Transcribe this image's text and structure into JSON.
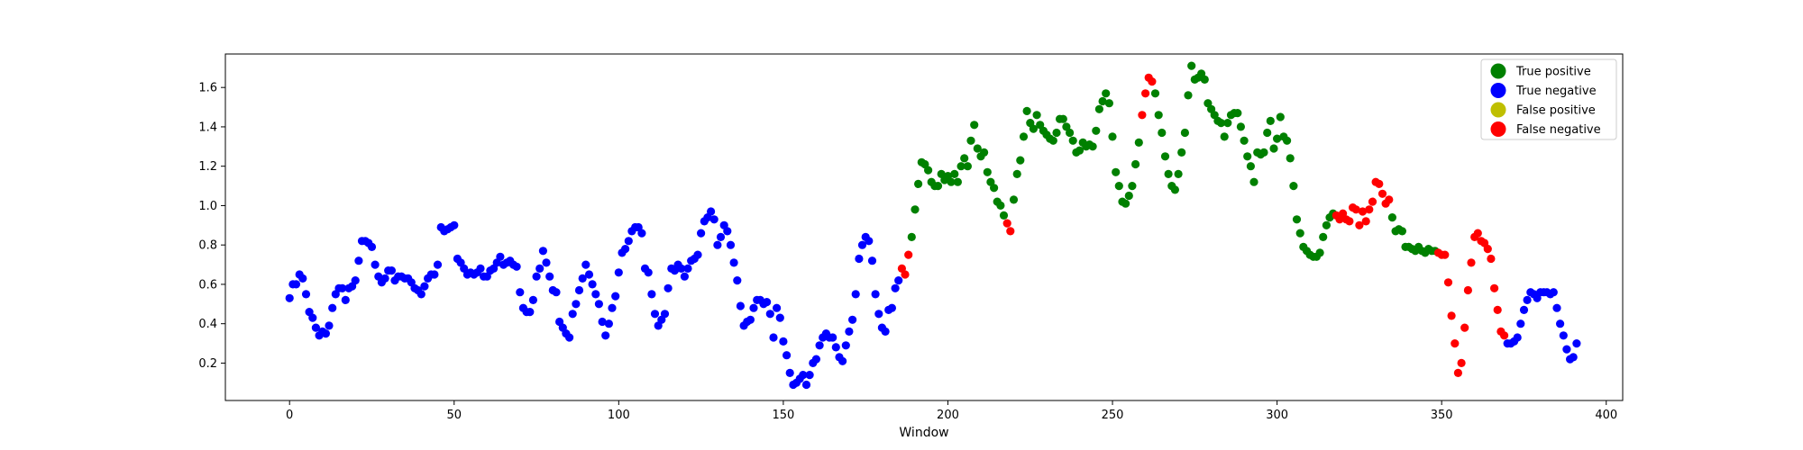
{
  "chart_data": {
    "type": "scatter",
    "title": "",
    "xlabel": "Window",
    "ylabel": "",
    "xlim": [
      -19.5,
      405
    ],
    "ylim": [
      0.01,
      1.77
    ],
    "xticks": [
      0,
      50,
      100,
      150,
      200,
      250,
      300,
      350,
      400
    ],
    "yticks": [
      0.2,
      0.4,
      0.6,
      0.8,
      1.0,
      1.2,
      1.4,
      1.6
    ],
    "grid": false,
    "legend": {
      "position": "top-right"
    },
    "series": [
      {
        "name": "True positive",
        "color": "#008000"
      },
      {
        "name": "True negative",
        "color": "#0000ff"
      },
      {
        "name": "False positive",
        "color": "#bfbf00"
      },
      {
        "name": "False negative",
        "color": "#ff0000"
      }
    ],
    "x_start": 0,
    "x_step": 1,
    "y": [
      0.53,
      0.6,
      0.6,
      0.65,
      0.63,
      0.55,
      0.46,
      0.43,
      0.38,
      0.34,
      0.36,
      0.35,
      0.39,
      0.48,
      0.55,
      0.58,
      0.58,
      0.52,
      0.58,
      0.59,
      0.62,
      0.72,
      0.82,
      0.82,
      0.81,
      0.79,
      0.7,
      0.64,
      0.61,
      0.63,
      0.67,
      0.67,
      0.62,
      0.64,
      0.64,
      0.63,
      0.63,
      0.61,
      0.58,
      0.57,
      0.55,
      0.59,
      0.63,
      0.65,
      0.65,
      0.7,
      0.89,
      0.87,
      0.88,
      0.89,
      0.9,
      0.73,
      0.71,
      0.68,
      0.65,
      0.66,
      0.65,
      0.66,
      0.68,
      0.64,
      0.64,
      0.67,
      0.68,
      0.71,
      0.74,
      0.7,
      0.71,
      0.72,
      0.7,
      0.69,
      0.56,
      0.48,
      0.46,
      0.46,
      0.52,
      0.64,
      0.68,
      0.77,
      0.71,
      0.64,
      0.57,
      0.56,
      0.41,
      0.38,
      0.35,
      0.33,
      0.45,
      0.5,
      0.57,
      0.63,
      0.7,
      0.65,
      0.6,
      0.55,
      0.5,
      0.41,
      0.34,
      0.4,
      0.48,
      0.54,
      0.66,
      0.76,
      0.78,
      0.82,
      0.87,
      0.89,
      0.89,
      0.86,
      0.68,
      0.66,
      0.55,
      0.45,
      0.39,
      0.42,
      0.45,
      0.58,
      0.68,
      0.67,
      0.7,
      0.68,
      0.64,
      0.68,
      0.72,
      0.73,
      0.75,
      0.86,
      0.92,
      0.94,
      0.97,
      0.93,
      0.8,
      0.84,
      0.9,
      0.87,
      0.8,
      0.71,
      0.62,
      0.49,
      0.39,
      0.41,
      0.42,
      0.48,
      0.52,
      0.52,
      0.5,
      0.51,
      0.45,
      0.33,
      0.48,
      0.43,
      0.31,
      0.24,
      0.15,
      0.09,
      0.1,
      0.12,
      0.14,
      0.09,
      0.14,
      0.2,
      0.22,
      0.29,
      0.33,
      0.35,
      0.33,
      0.33,
      0.28,
      0.23,
      0.21,
      0.29,
      0.36,
      0.42,
      0.55,
      0.73,
      0.8,
      0.84,
      0.82,
      0.72,
      0.55,
      0.45,
      0.38,
      0.36,
      0.47,
      0.48,
      0.58,
      0.62,
      0.68,
      0.65,
      0.75,
      0.84,
      0.98,
      1.11,
      1.22,
      1.21,
      1.18,
      1.12,
      1.1,
      1.1,
      1.16,
      1.13,
      1.15,
      1.12,
      1.16,
      1.12,
      1.2,
      1.24,
      1.2,
      1.33,
      1.41,
      1.29,
      1.25,
      1.27,
      1.17,
      1.12,
      1.09,
      1.02,
      1.0,
      0.95,
      0.91,
      0.87,
      1.03,
      1.16,
      1.23,
      1.35,
      1.48,
      1.42,
      1.39,
      1.46,
      1.41,
      1.38,
      1.36,
      1.34,
      1.33,
      1.37,
      1.44,
      1.44,
      1.4,
      1.37,
      1.33,
      1.27,
      1.28,
      1.32,
      1.3,
      1.31,
      1.3,
      1.38,
      1.49,
      1.53,
      1.57,
      1.52,
      1.35,
      1.17,
      1.1,
      1.02,
      1.01,
      1.05,
      1.1,
      1.21,
      1.32,
      1.46,
      1.57,
      1.65,
      1.63,
      1.57,
      1.46,
      1.37,
      1.25,
      1.16,
      1.1,
      1.08,
      1.16,
      1.27,
      1.37,
      1.56,
      1.71,
      1.64,
      1.65,
      1.67,
      1.64,
      1.52,
      1.49,
      1.46,
      1.43,
      1.42,
      1.35,
      1.42,
      1.46,
      1.47,
      1.47,
      1.4,
      1.33,
      1.25,
      1.2,
      1.12,
      1.27,
      1.26,
      1.27,
      1.37,
      1.43,
      1.29,
      1.34,
      1.45,
      1.35,
      1.33,
      1.24,
      1.1,
      0.93,
      0.86,
      0.79,
      0.77,
      0.75,
      0.74,
      0.74,
      0.76,
      0.84,
      0.9,
      0.94,
      0.96,
      0.95,
      0.93,
      0.96,
      0.93,
      0.92,
      0.99,
      0.98,
      0.9,
      0.97,
      0.92,
      0.98,
      1.02,
      1.12,
      1.11,
      1.06,
      1.01,
      1.03,
      0.94,
      0.87,
      0.88,
      0.87,
      0.79,
      0.79,
      0.78,
      0.77,
      0.79,
      0.77,
      0.76,
      0.78,
      0.77,
      0.77,
      0.76,
      0.75,
      0.75,
      0.61,
      0.44,
      0.3,
      0.15,
      0.2,
      0.38,
      0.57,
      0.71,
      0.84,
      0.86,
      0.82,
      0.81,
      0.78,
      0.73,
      0.58,
      0.47,
      0.36,
      0.34,
      0.3,
      0.3,
      0.31,
      0.33,
      0.4,
      0.47,
      0.52,
      0.56,
      0.55,
      0.53,
      0.56,
      0.56,
      0.56,
      0.55,
      0.56,
      0.48,
      0.4,
      0.34,
      0.27,
      0.22,
      0.23,
      0.3
    ],
    "classes": "NNNNNNNNNNNNNNNNNNNNNNNNNNNNNNNNNNNNNNNNNNNNNNNNNNNNNNNNNNNNNNNNNNNNNNNNNNNNNNNNNNNNNNNNNNNNNNNNNNNNNNNNNNNNNNNNNNNNNNNNNNNNNNNNNNNNNNNNNNNNNNNNNNNNNNNNNNNNNNNNNNNNNNNNNNNNNNNNNNNNNNNNNNFFFPPPPPPPPPPPPPPPPPPPPPPPPPPPPPFFPPPPPPPPPPPPPPPPPPPPPPPPPPPPPPPPPPPPPPPFFFFPPPPPPPPPPPPPPPPPPPPPPPPPPPPPPPPPPPPPPPPPPPPPPPPPPPPPPPFFFFFFFFFFFFFFFFFPPPPPPPPPPPPPPFFFFFFFFFFFFFFFFFFFFFNNNNNNNNNNNNNNNNNNNNNNNNNNNNNNNNNNNNNNNN",
    "class_codes": {
      "P": "True positive",
      "N": "True negative",
      "FP": "False positive",
      "F": "False negative"
    }
  }
}
